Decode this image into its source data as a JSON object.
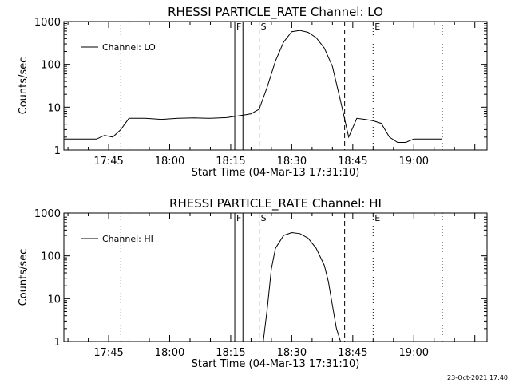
{
  "footer": {
    "timestamp": "23-Oct-2021 17:40"
  },
  "chart_data": [
    {
      "type": "line",
      "title": "RHESSI PARTICLE_RATE Channel: LO",
      "xlabel": "Start Time (04-Mar-13 17:31:10)",
      "ylabel": "Counts/sec",
      "x_ticks": [
        "17:45",
        "18:00",
        "18:15",
        "18:30",
        "18:45",
        "19:00"
      ],
      "y_ticks": [
        "1",
        "10",
        "100",
        "1000"
      ],
      "y_scale": "log",
      "ylim": [
        1,
        1000
      ],
      "xlim": [
        "17:34",
        "19:18"
      ],
      "legend": "Channel: LO",
      "markers": [
        {
          "label": "F",
          "time": "18:16",
          "style": "solid"
        },
        {
          "label": "",
          "time": "18:18",
          "style": "solid"
        },
        {
          "label": "S",
          "time": "18:22",
          "style": "dashed"
        },
        {
          "label": "",
          "time": "18:43",
          "style": "dashed"
        },
        {
          "label": "E",
          "time": "18:50",
          "style": "dotted"
        },
        {
          "label": "",
          "time": "17:48",
          "style": "dotted"
        },
        {
          "label": "",
          "time": "19:07",
          "style": "dotted"
        }
      ],
      "series": [
        {
          "name": "Channel: LO",
          "x": [
            "17:34",
            "17:36",
            "17:38",
            "17:40",
            "17:42",
            "17:44",
            "17:46",
            "17:48",
            "17:50",
            "17:54",
            "17:58",
            "18:02",
            "18:06",
            "18:10",
            "18:14",
            "18:18",
            "18:20",
            "18:22",
            "18:24",
            "18:26",
            "18:28",
            "18:30",
            "18:32",
            "18:34",
            "18:36",
            "18:38",
            "18:40",
            "18:42",
            "18:44",
            "18:46",
            "18:48",
            "18:50",
            "18:52",
            "18:54",
            "18:56",
            "18:58",
            "19:00",
            "19:02",
            "19:04",
            "19:07"
          ],
          "values": [
            1.8,
            1.8,
            1.8,
            1.8,
            1.8,
            2.2,
            2.0,
            3.0,
            5.5,
            5.5,
            5.2,
            5.5,
            5.6,
            5.5,
            5.7,
            6.5,
            7.0,
            9.0,
            30,
            120,
            330,
            580,
            620,
            560,
            420,
            240,
            90,
            14,
            2.0,
            5.5,
            5.2,
            4.8,
            4.2,
            2.0,
            1.5,
            1.5,
            1.8,
            1.8,
            1.8,
            1.8
          ]
        }
      ]
    },
    {
      "type": "line",
      "title": "RHESSI PARTICLE_RATE Channel: HI",
      "xlabel": "Start Time (04-Mar-13 17:31:10)",
      "ylabel": "Counts/sec",
      "x_ticks": [
        "17:45",
        "18:00",
        "18:15",
        "18:30",
        "18:45",
        "19:00"
      ],
      "y_ticks": [
        "1",
        "10",
        "100",
        "1000"
      ],
      "y_scale": "log",
      "ylim": [
        1,
        1000
      ],
      "xlim": [
        "17:34",
        "19:18"
      ],
      "legend": "Channel: HI",
      "markers": [
        {
          "label": "F",
          "time": "18:16",
          "style": "solid"
        },
        {
          "label": "",
          "time": "18:18",
          "style": "solid"
        },
        {
          "label": "S",
          "time": "18:22",
          "style": "dashed"
        },
        {
          "label": "",
          "time": "18:43",
          "style": "dashed"
        },
        {
          "label": "E",
          "time": "18:50",
          "style": "dotted"
        },
        {
          "label": "",
          "time": "17:48",
          "style": "dotted"
        },
        {
          "label": "",
          "time": "19:07",
          "style": "dotted"
        }
      ],
      "series": [
        {
          "name": "Channel: HI",
          "x": [
            "18:23",
            "18:24",
            "18:25",
            "18:26",
            "18:28",
            "18:30",
            "18:32",
            "18:34",
            "18:36",
            "18:38",
            "18:39",
            "18:40",
            "18:41",
            "18:42"
          ],
          "values": [
            1.0,
            6,
            50,
            150,
            300,
            350,
            330,
            260,
            150,
            60,
            25,
            7,
            2,
            1.0
          ]
        }
      ]
    }
  ]
}
